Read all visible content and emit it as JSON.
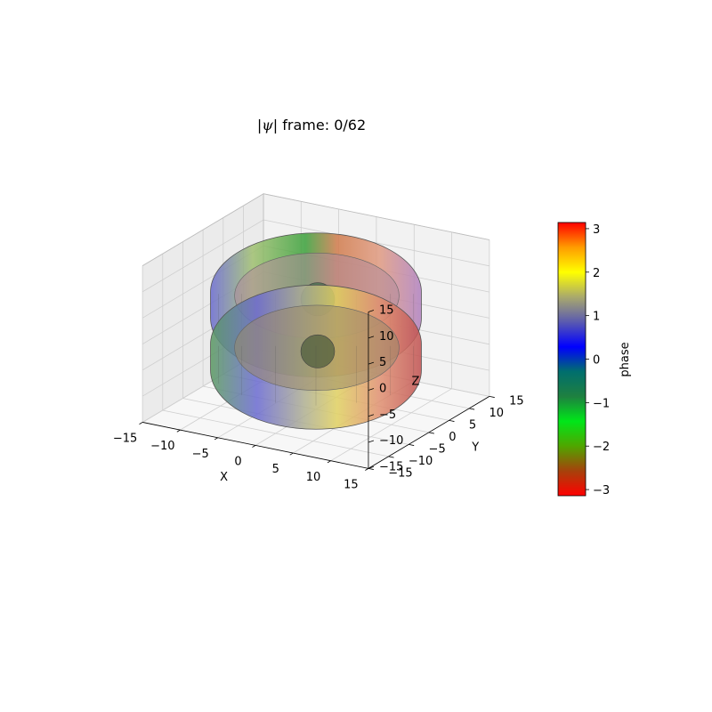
{
  "chart_data": {
    "type": "surface3d",
    "title": {
      "prefix": "|",
      "symbol": "ψ",
      "suffix": "| frame: 0/62"
    },
    "xlabel": "X",
    "ylabel": "Y",
    "zlabel": "Z",
    "xlim": [
      -15,
      15
    ],
    "ylim": [
      -15,
      15
    ],
    "zlim": [
      -15,
      15
    ],
    "xticks": [
      -15,
      -10,
      -5,
      0,
      5,
      10,
      15
    ],
    "yticks": [
      -15,
      -10,
      -5,
      0,
      5,
      10,
      15
    ],
    "zticks": [
      -15,
      -10,
      -5,
      0,
      5,
      10,
      15
    ],
    "grid": true,
    "surfaces": [
      {
        "shape": "torus",
        "center_z": 5,
        "major_radius": 9.5,
        "minor_radius": 4.5
      },
      {
        "shape": "torus",
        "center_z": -5,
        "major_radius": 9.5,
        "minor_radius": 4.5
      }
    ],
    "colorbar": {
      "label": "phase",
      "min": -3.14159,
      "max": 3.14159,
      "ticks": [
        -3,
        -2,
        -1,
        0,
        1,
        2,
        3
      ],
      "colors": [
        "#ff0000",
        "#a6420b",
        "#4fa600",
        "#00e619",
        "#1e8040",
        "#006e6e",
        "#0000ff",
        "#5a5ab0",
        "#a9a96c",
        "#ffff00",
        "#ff9c00",
        "#ff0000"
      ]
    }
  }
}
